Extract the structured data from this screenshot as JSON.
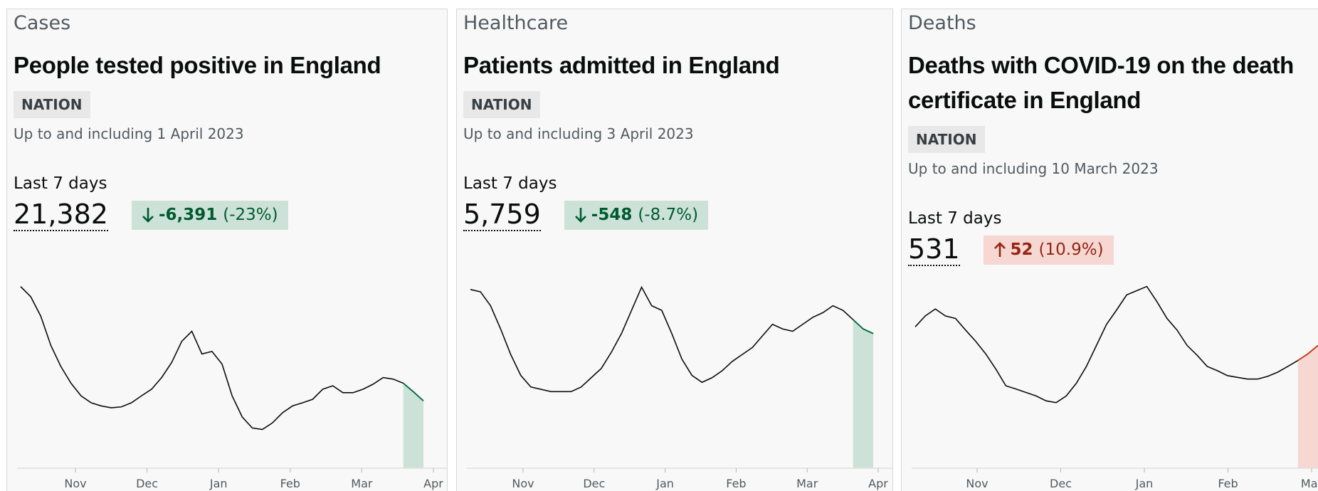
{
  "cards": [
    {
      "category": "Cases",
      "title": "People tested positive in England",
      "badge": "NATION",
      "date": "Up to and including 1 April 2023",
      "last_label": "Last 7 days",
      "value": "21,382",
      "change": "-6,391",
      "change_percent": "(-23%)",
      "trend": "down",
      "chart": {
        "type": "line",
        "color": "#0b0c0c",
        "highlight_color": "#00703c",
        "highlight_fill": "#cce2d8",
        "change_text_color": "#005a30",
        "values": [
          57700,
          54500,
          48300,
          39000,
          32300,
          27000,
          23000,
          20800,
          19800,
          19200,
          19500,
          20800,
          23000,
          25100,
          28800,
          33600,
          40300,
          43500,
          36300,
          37100,
          33100,
          23000,
          16300,
          12800,
          12300,
          14400,
          17600,
          19800,
          20800,
          21900,
          25100,
          26200,
          24000,
          24000,
          25100,
          26700,
          28800,
          28300,
          27000,
          24300,
          21400
        ],
        "ylim": [
          0,
          59000
        ],
        "xticks": [
          "Nov",
          "Dec",
          "Jan",
          "Feb",
          "Mar",
          "Apr"
        ]
      }
    },
    {
      "category": "Healthcare",
      "title": "Patients admitted in England",
      "badge": "NATION",
      "date": "Up to and including 3 April 2023",
      "last_label": "Last 7 days",
      "value": "5,759",
      "change": "-548",
      "change_percent": "(-8.7%)",
      "trend": "down",
      "chart": {
        "type": "line",
        "color": "#0b0c0c",
        "highlight_color": "#00703c",
        "highlight_fill": "#cce2d8",
        "change_text_color": "#005a30",
        "values": [
          7700,
          7600,
          7000,
          6000,
          4900,
          4000,
          3500,
          3400,
          3300,
          3300,
          3300,
          3500,
          3900,
          4300,
          5000,
          5800,
          6800,
          7800,
          7000,
          6800,
          5800,
          4700,
          4000,
          3700,
          3900,
          4200,
          4600,
          4900,
          5200,
          5700,
          6200,
          6000,
          5900,
          6200,
          6500,
          6700,
          7000,
          6800,
          6400,
          6000,
          5800
        ],
        "ylim": [
          0,
          8000
        ],
        "xticks": [
          "Nov",
          "Dec",
          "Jan",
          "Feb",
          "Mar",
          "Apr"
        ]
      }
    },
    {
      "category": "Deaths",
      "title": "Deaths with COVID-19 on the death certificate in England",
      "badge": "NATION",
      "date": "Up to and including 10 March 2023",
      "last_label": "Last 7 days",
      "value": "531",
      "change": "52",
      "change_percent": "(10.9%)",
      "trend": "up",
      "chart": {
        "type": "line",
        "color": "#0b0c0c",
        "highlight_color": "#d4351c",
        "highlight_fill": "#f6d7d2",
        "change_text_color": "#942514",
        "values": [
          571,
          615,
          643,
          615,
          605,
          558,
          513,
          462,
          401,
          333,
          320,
          306,
          292,
          272,
          265,
          292,
          343,
          411,
          496,
          581,
          639,
          700,
          717,
          734,
          673,
          605,
          558,
          496,
          456,
          411,
          394,
          374,
          367,
          360,
          360,
          371,
          388,
          411,
          435,
          462,
          496
        ],
        "ylim": [
          0,
          750
        ],
        "xticks": [
          "Nov",
          "Dec",
          "Jan",
          "Feb",
          "Mar"
        ]
      }
    }
  ]
}
